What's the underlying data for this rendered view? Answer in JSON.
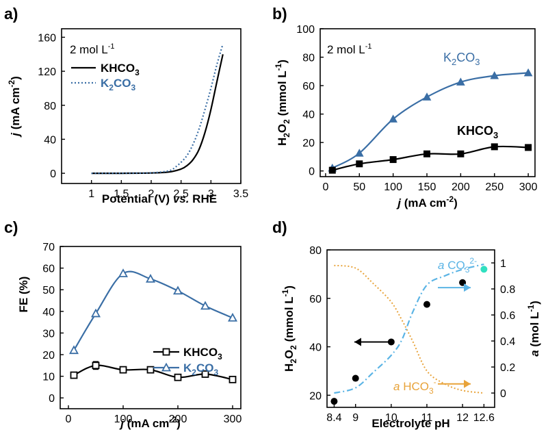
{
  "colors": {
    "black": "#000000",
    "blue": "#3a6ea5",
    "orange": "#e8a33a",
    "lightblue": "#5bb4e5",
    "cyan": "#30e0c0"
  },
  "chart_data": [
    {
      "type": "line",
      "panel": "a)",
      "xlabel": {
        "pre": "Potential (V) ",
        "ital": "vs.",
        "post": " RHE"
      },
      "ylabel": {
        "ital": "j",
        "post": " (mA cm",
        "sup": "-2",
        "close": ")"
      },
      "xlim": [
        0.5,
        3.5
      ],
      "ylim": [
        -12,
        170
      ],
      "xticks": [
        1,
        1.5,
        2,
        2.5,
        3,
        3.5
      ],
      "yticks": [
        0,
        40,
        80,
        120,
        160
      ],
      "annotation": {
        "text": "2 mol L",
        "sup": "-1"
      },
      "series": [
        {
          "name": "KHCO3",
          "name_main": "KHCO",
          "name_sub": "3",
          "color": "#000000",
          "style": "solid",
          "x": [
            1.0,
            1.5,
            2.0,
            2.3,
            2.5,
            2.6,
            2.7,
            2.8,
            2.9,
            3.0,
            3.1,
            3.2
          ],
          "y": [
            0,
            0,
            0.3,
            1.5,
            5,
            9,
            16,
            28,
            48,
            75,
            108,
            140
          ]
        },
        {
          "name": "K2CO3",
          "name_main": "K",
          "name_sub": "2",
          "name_tail": "CO",
          "name_sub2": "3",
          "color": "#3a6ea5",
          "style": "dotted",
          "x": [
            1.0,
            1.5,
            2.0,
            2.3,
            2.4,
            2.5,
            2.6,
            2.7,
            2.8,
            2.9,
            3.0,
            3.1,
            3.2
          ],
          "y": [
            0,
            0,
            0.5,
            3,
            7,
            13,
            21,
            34,
            52,
            75,
            100,
            128,
            152
          ]
        }
      ]
    },
    {
      "type": "line",
      "panel": "b)",
      "xlabel": {
        "ital": "j",
        "post": " (mA cm",
        "sup": "-2",
        "close": ")"
      },
      "ylabel": {
        "a": "H",
        "s1": "2",
        "b": "O",
        "s2": "2",
        "c": " (mmol L",
        "sup": "-1",
        "close": ")"
      },
      "xlim": [
        -8,
        310
      ],
      "ylim": [
        -4,
        100
      ],
      "xticks": [
        0,
        50,
        100,
        150,
        200,
        250,
        300
      ],
      "yticks": [
        0,
        20,
        40,
        60,
        80,
        100
      ],
      "annotation": {
        "text": "2 mol L",
        "sup": "-1"
      },
      "series": [
        {
          "name": "K2CO3",
          "name_main": "K",
          "name_sub": "2",
          "name_tail": "CO",
          "name_sub2": "3",
          "color": "#3a6ea5",
          "marker": "triangle",
          "x": [
            10,
            50,
            100,
            150,
            200,
            250,
            300
          ],
          "y": [
            2,
            12.5,
            36.5,
            52,
            62.5,
            67,
            69
          ]
        },
        {
          "name": "KHCO3",
          "name_main": "KHCO",
          "name_sub": "3",
          "color": "#000000",
          "marker": "square",
          "x": [
            10,
            50,
            100,
            150,
            200,
            250,
            300
          ],
          "y": [
            0.5,
            5,
            8,
            12,
            12,
            17,
            16.5
          ]
        }
      ]
    },
    {
      "type": "line",
      "panel": "c)",
      "xlabel": {
        "ital": "j",
        "post": " (mA cm",
        "sup": "-2",
        "close": ")"
      },
      "ylabel": {
        "text": "FE (%)"
      },
      "xlim": [
        -15,
        315
      ],
      "ylim": [
        -5,
        70
      ],
      "xticks": [
        0,
        100,
        200,
        300
      ],
      "yticks": [
        0,
        10,
        20,
        30,
        40,
        50,
        60,
        70
      ],
      "series": [
        {
          "name": "KHCO3",
          "name_main": "KHCO",
          "name_sub": "3",
          "color": "#000000",
          "marker": "square",
          "x": [
            10,
            50,
            100,
            150,
            200,
            250,
            300
          ],
          "y": [
            10.5,
            15,
            13,
            13,
            9.5,
            11,
            8.5
          ],
          "err": [
            0,
            1.8,
            0,
            0,
            0,
            0,
            0
          ]
        },
        {
          "name": "K2CO3",
          "name_main": "K",
          "name_sub": "2",
          "name_tail": "CO",
          "name_sub2": "3",
          "color": "#3a6ea5",
          "marker": "triangle",
          "x": [
            10,
            50,
            100,
            150,
            200,
            250,
            300
          ],
          "y": [
            22,
            39,
            57.5,
            55,
            49.5,
            42.5,
            37
          ]
        }
      ]
    },
    {
      "type": "scatter",
      "panel": "d)",
      "xlabel": {
        "text": "Electrolyte pH"
      },
      "ylabel": {
        "a": "H",
        "s1": "2",
        "b": "O",
        "s2": "2",
        "c": " (mmol L",
        "sup": "-1",
        "close": ")"
      },
      "y2label": {
        "ital": "a",
        "post": " (mol L",
        "sup": "-1",
        "close": ")"
      },
      "xlim": [
        8.2,
        12.9
      ],
      "ylim": [
        15,
        80
      ],
      "y2lim": [
        -0.11,
        1.1
      ],
      "xticks": [
        8.4,
        9,
        10,
        11,
        12,
        12.6
      ],
      "xtick_labels": [
        "8.4",
        "9",
        "10",
        "11",
        "12",
        "12.6"
      ],
      "yticks": [
        20,
        40,
        60,
        80
      ],
      "y2ticks": [
        0,
        0.2,
        0.4,
        0.6,
        0.8,
        1
      ],
      "y2tick_labels": [
        "0",
        "0.2",
        "0.4",
        "0.6",
        "0.8",
        "1"
      ],
      "points": {
        "x": [
          8.4,
          9,
          10,
          11,
          12,
          12.6
        ],
        "y": [
          17.5,
          27,
          42,
          57.5,
          66.5,
          72
        ]
      },
      "label_co3": {
        "ital": "a",
        "mid": " CO",
        "sub": "3",
        "sup": "2-"
      },
      "label_hco3": {
        "ital": "a",
        "mid": " HCO",
        "sub": "3",
        "sup": "-"
      },
      "series_co3": {
        "x": [
          8.4,
          9.0,
          9.5,
          10.0,
          10.3,
          10.6,
          11.0,
          11.5,
          12.0,
          12.6
        ],
        "y": [
          0.0,
          0.04,
          0.16,
          0.29,
          0.41,
          0.62,
          0.83,
          0.9,
          0.95,
          0.99
        ]
      },
      "series_hco3": {
        "x": [
          8.4,
          9.0,
          9.5,
          10.0,
          10.3,
          10.6,
          11.0,
          11.5,
          12.0,
          12.6
        ],
        "y": [
          0.98,
          0.96,
          0.84,
          0.7,
          0.56,
          0.4,
          0.17,
          0.07,
          0.02,
          0.0
        ]
      }
    }
  ]
}
